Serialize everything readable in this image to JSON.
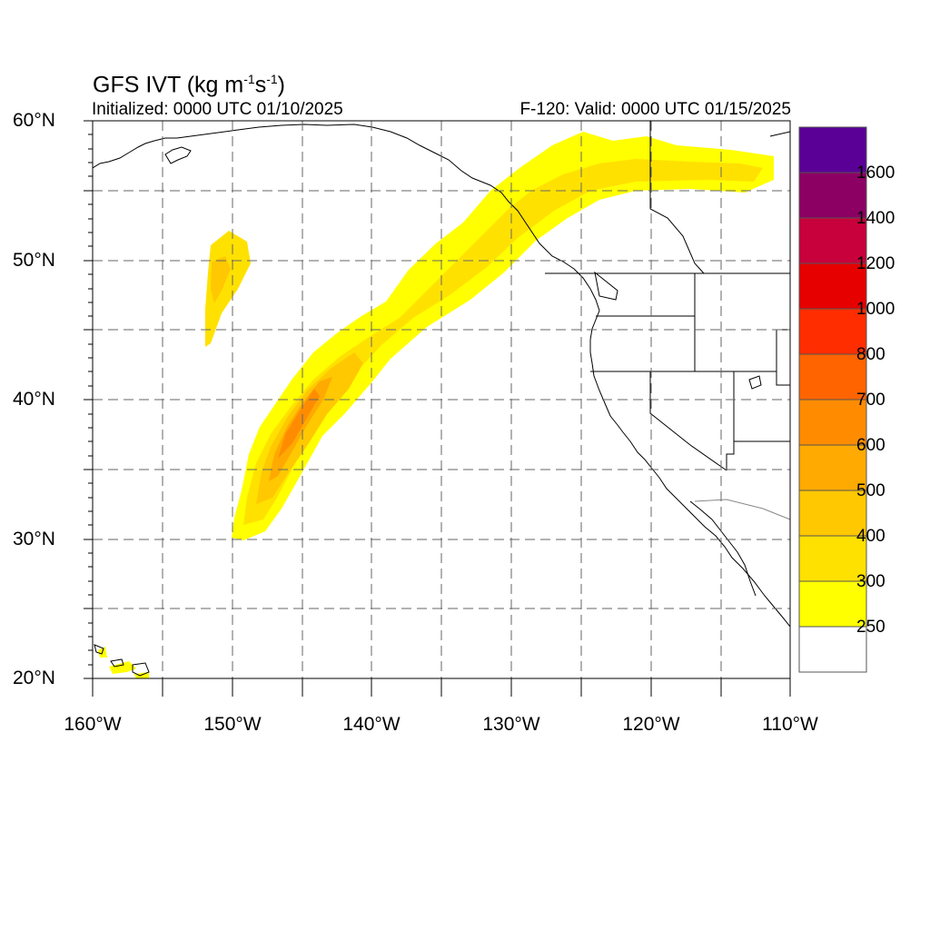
{
  "title": {
    "main": "GFS IVT (kg m",
    "sup1": "-1",
    "mid": "s",
    "sup2": "-1",
    "end": ")"
  },
  "initialized": "Initialized: 0000 UTC 01/10/2025",
  "valid": "F-120: Valid: 0000 UTC 01/15/2025",
  "lat_labels": [
    {
      "text": "60°N",
      "value": 60
    },
    {
      "text": "50°N",
      "value": 50
    },
    {
      "text": "40°N",
      "value": 40
    },
    {
      "text": "30°N",
      "value": 30
    },
    {
      "text": "20°N",
      "value": 20
    }
  ],
  "lon_labels": [
    {
      "text": "160°W",
      "value": -160
    },
    {
      "text": "150°W",
      "value": -150
    },
    {
      "text": "140°W",
      "value": -140
    },
    {
      "text": "130°W",
      "value": -130
    },
    {
      "text": "120°W",
      "value": -120
    },
    {
      "text": "110°W",
      "value": -110
    }
  ],
  "colorbar": {
    "labels": [
      "250",
      "300",
      "400",
      "500",
      "600",
      "700",
      "800",
      "1000",
      "1200",
      "1400",
      "1600"
    ],
    "colors": [
      "#ffffff",
      "#ffff00",
      "#ffe100",
      "#ffc800",
      "#ffaa00",
      "#ff8c00",
      "#ff6400",
      "#ff2d00",
      "#e60000",
      "#c8003c",
      "#8c0064",
      "#5a0096"
    ]
  }
}
